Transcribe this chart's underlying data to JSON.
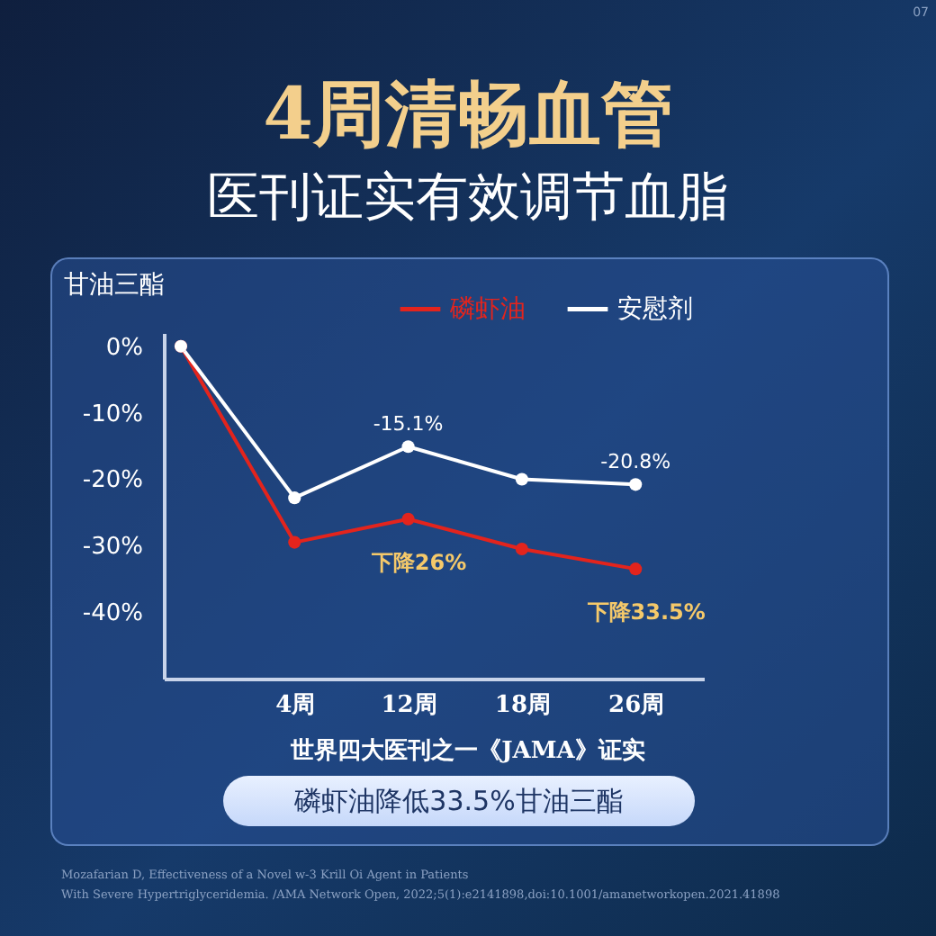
{
  "chart_data": {
    "type": "line",
    "title": "4周清畅血管",
    "subtitle": "医刊证实有效调节血脂",
    "ylabel": "甘油三酯",
    "categories": [
      null,
      "4周",
      "12周",
      "18周",
      "26周"
    ],
    "series": [
      {
        "name": "磷虾油",
        "color": "#e3241d",
        "values": [
          0,
          -29.5,
          -26,
          -30.5,
          -33.5
        ]
      },
      {
        "name": "安慰剂",
        "color": "#ffffff",
        "values": [
          0,
          -22.8,
          -15.1,
          -20,
          -20.8
        ],
        "value_labels": [
          null,
          null,
          "-15.1%",
          null,
          "-20.8%"
        ]
      }
    ],
    "ylim": [
      -50,
      2
    ],
    "yticks": [
      {
        "value": 0,
        "label": "0%"
      },
      {
        "value": -10,
        "label": "-10%"
      },
      {
        "value": -20,
        "label": "-20%"
      },
      {
        "value": -30,
        "label": "-30%"
      },
      {
        "value": -40,
        "label": "-40%"
      }
    ],
    "grid": false,
    "legend": "top right",
    "marker": "circle",
    "line_style": "solid",
    "annotations": [
      {
        "text": "下降26%",
        "x": "12周",
        "y": -26
      },
      {
        "text": "下降33.5%",
        "x": "26周",
        "y": -33.5
      },
      "世界四大医刊之一《JAMA》证实",
      "磷虾油降低33.5%甘油三酯",
      "Mozafarian D, Effectiveness of a Novel w-3 Krill Oi Agent in Patients",
      "With Severe Hypertriglyceridemia. /AMA Network Open, 2022;5(1):e2141898,doi:10.1001/amanetworkopen.2021.41898",
      "07"
    ]
  }
}
